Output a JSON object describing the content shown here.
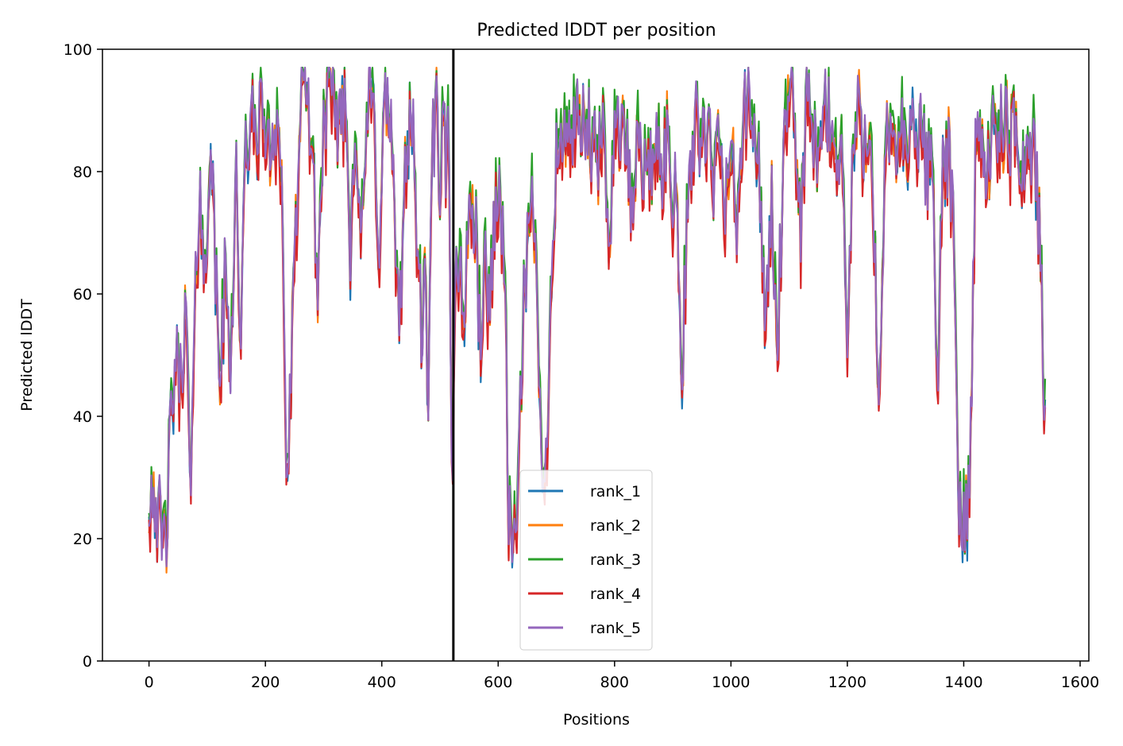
{
  "chart_data": {
    "type": "line",
    "title": "Predicted lDDT per position",
    "xlabel": "Positions",
    "ylabel": "Predicted lDDT",
    "xlim": [
      -80,
      1615
    ],
    "ylim": [
      0,
      100
    ],
    "xticks": [
      0,
      200,
      400,
      600,
      800,
      1000,
      1200,
      1400,
      1600
    ],
    "yticks": [
      0,
      20,
      40,
      60,
      80,
      100
    ],
    "grid": false,
    "legend_position": "lower center",
    "vline_x": 523,
    "x_range": [
      0,
      1541
    ],
    "series": [
      {
        "name": "rank_1",
        "color": "#1f77b4"
      },
      {
        "name": "rank_2",
        "color": "#ff7f0e"
      },
      {
        "name": "rank_3",
        "color": "#2ca02c"
      },
      {
        "name": "rank_4",
        "color": "#d62728"
      },
      {
        "name": "rank_5",
        "color": "#9467bd"
      }
    ],
    "profile": [
      [
        0,
        26
      ],
      [
        8,
        30
      ],
      [
        15,
        22
      ],
      [
        22,
        18
      ],
      [
        30,
        22
      ],
      [
        38,
        38
      ],
      [
        45,
        48
      ],
      [
        55,
        44
      ],
      [
        62,
        58
      ],
      [
        68,
        40
      ],
      [
        72,
        27
      ],
      [
        80,
        58
      ],
      [
        88,
        80
      ],
      [
        95,
        56
      ],
      [
        105,
        88
      ],
      [
        115,
        60
      ],
      [
        122,
        46
      ],
      [
        130,
        60
      ],
      [
        140,
        50
      ],
      [
        150,
        80
      ],
      [
        158,
        48
      ],
      [
        165,
        82
      ],
      [
        175,
        88
      ],
      [
        185,
        86
      ],
      [
        195,
        90
      ],
      [
        205,
        82
      ],
      [
        215,
        86
      ],
      [
        222,
        88
      ],
      [
        228,
        78
      ],
      [
        235,
        35
      ],
      [
        240,
        31
      ],
      [
        248,
        58
      ],
      [
        255,
        78
      ],
      [
        262,
        90
      ],
      [
        270,
        93
      ],
      [
        280,
        84
      ],
      [
        290,
        60
      ],
      [
        300,
        88
      ],
      [
        310,
        92
      ],
      [
        320,
        85
      ],
      [
        330,
        91
      ],
      [
        340,
        88
      ],
      [
        345,
        65
      ],
      [
        355,
        90
      ],
      [
        365,
        66
      ],
      [
        375,
        88
      ],
      [
        385,
        92
      ],
      [
        395,
        66
      ],
      [
        405,
        92
      ],
      [
        415,
        88
      ],
      [
        425,
        64
      ],
      [
        430,
        50
      ],
      [
        440,
        82
      ],
      [
        450,
        90
      ],
      [
        460,
        70
      ],
      [
        468,
        55
      ],
      [
        475,
        60
      ],
      [
        480,
        43
      ],
      [
        488,
        85
      ],
      [
        495,
        90
      ],
      [
        500,
        66
      ],
      [
        505,
        92
      ],
      [
        510,
        80
      ],
      [
        515,
        92
      ],
      [
        520,
        36
      ],
      [
        523,
        36
      ],
      [
        528,
        70
      ],
      [
        540,
        55
      ],
      [
        550,
        75
      ],
      [
        560,
        70
      ],
      [
        570,
        52
      ],
      [
        578,
        65
      ],
      [
        585,
        55
      ],
      [
        595,
        76
      ],
      [
        605,
        72
      ],
      [
        612,
        65
      ],
      [
        618,
        20
      ],
      [
        625,
        18
      ],
      [
        635,
        30
      ],
      [
        645,
        60
      ],
      [
        652,
        66
      ],
      [
        660,
        75
      ],
      [
        668,
        60
      ],
      [
        675,
        25
      ],
      [
        682,
        30
      ],
      [
        690,
        60
      ],
      [
        700,
        84
      ],
      [
        710,
        82
      ],
      [
        720,
        88
      ],
      [
        730,
        85
      ],
      [
        740,
        86
      ],
      [
        750,
        87
      ],
      [
        760,
        83
      ],
      [
        770,
        80
      ],
      [
        780,
        86
      ],
      [
        790,
        70
      ],
      [
        800,
        85
      ],
      [
        810,
        88
      ],
      [
        820,
        84
      ],
      [
        830,
        72
      ],
      [
        840,
        85
      ],
      [
        850,
        82
      ],
      [
        860,
        78
      ],
      [
        870,
        84
      ],
      [
        880,
        80
      ],
      [
        890,
        86
      ],
      [
        900,
        75
      ],
      [
        908,
        78
      ],
      [
        915,
        42
      ],
      [
        920,
        60
      ],
      [
        930,
        78
      ],
      [
        940,
        90
      ],
      [
        950,
        82
      ],
      [
        960,
        88
      ],
      [
        970,
        75
      ],
      [
        980,
        86
      ],
      [
        990,
        72
      ],
      [
        1000,
        84
      ],
      [
        1010,
        70
      ],
      [
        1020,
        88
      ],
      [
        1030,
        90
      ],
      [
        1040,
        85
      ],
      [
        1050,
        78
      ],
      [
        1060,
        52
      ],
      [
        1070,
        75
      ],
      [
        1080,
        50
      ],
      [
        1090,
        80
      ],
      [
        1100,
        90
      ],
      [
        1110,
        88
      ],
      [
        1120,
        70
      ],
      [
        1130,
        92
      ],
      [
        1140,
        86
      ],
      [
        1150,
        78
      ],
      [
        1160,
        90
      ],
      [
        1170,
        88
      ],
      [
        1180,
        80
      ],
      [
        1190,
        86
      ],
      [
        1200,
        50
      ],
      [
        1210,
        84
      ],
      [
        1220,
        88
      ],
      [
        1230,
        84
      ],
      [
        1240,
        90
      ],
      [
        1250,
        55
      ],
      [
        1255,
        37
      ],
      [
        1265,
        80
      ],
      [
        1275,
        88
      ],
      [
        1285,
        84
      ],
      [
        1295,
        86
      ],
      [
        1305,
        82
      ],
      [
        1315,
        86
      ],
      [
        1325,
        84
      ],
      [
        1335,
        80
      ],
      [
        1345,
        84
      ],
      [
        1355,
        48
      ],
      [
        1365,
        80
      ],
      [
        1375,
        84
      ],
      [
        1385,
        60
      ],
      [
        1392,
        24
      ],
      [
        1400,
        22
      ],
      [
        1410,
        28
      ],
      [
        1420,
        82
      ],
      [
        1430,
        86
      ],
      [
        1440,
        80
      ],
      [
        1450,
        86
      ],
      [
        1460,
        84
      ],
      [
        1470,
        88
      ],
      [
        1480,
        84
      ],
      [
        1490,
        86
      ],
      [
        1500,
        80
      ],
      [
        1510,
        82
      ],
      [
        1520,
        84
      ],
      [
        1530,
        72
      ],
      [
        1541,
        32
      ]
    ]
  }
}
